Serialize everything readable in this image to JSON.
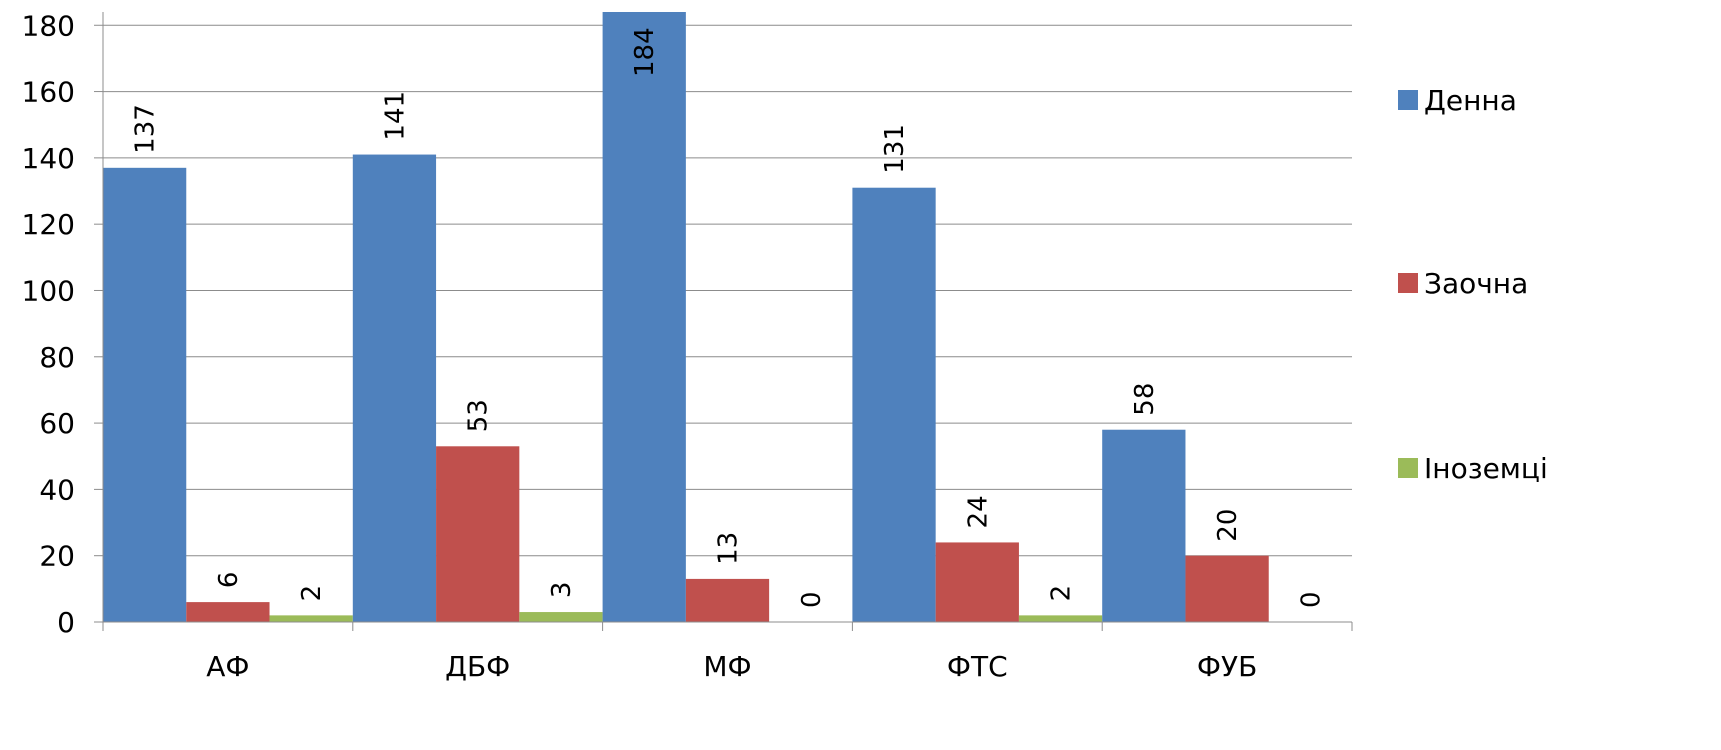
{
  "chart_data": {
    "type": "bar",
    "categories": [
      "АФ",
      "ДБФ",
      "МФ",
      "ФТС",
      "ФУБ"
    ],
    "series": [
      {
        "name": "Денна",
        "color": "#4f81bd",
        "values": [
          137,
          141,
          184,
          131,
          58
        ]
      },
      {
        "name": "Заочна",
        "color": "#c0504d",
        "values": [
          6,
          53,
          13,
          24,
          20
        ]
      },
      {
        "name": "Іноземці",
        "color": "#9bbb59",
        "values": [
          2,
          3,
          0,
          2,
          0
        ]
      }
    ],
    "yticks": [
      0,
      20,
      40,
      60,
      80,
      100,
      120,
      140,
      160,
      180
    ],
    "ylim": [
      0,
      184
    ],
    "grid": true,
    "legend_position": "right"
  }
}
